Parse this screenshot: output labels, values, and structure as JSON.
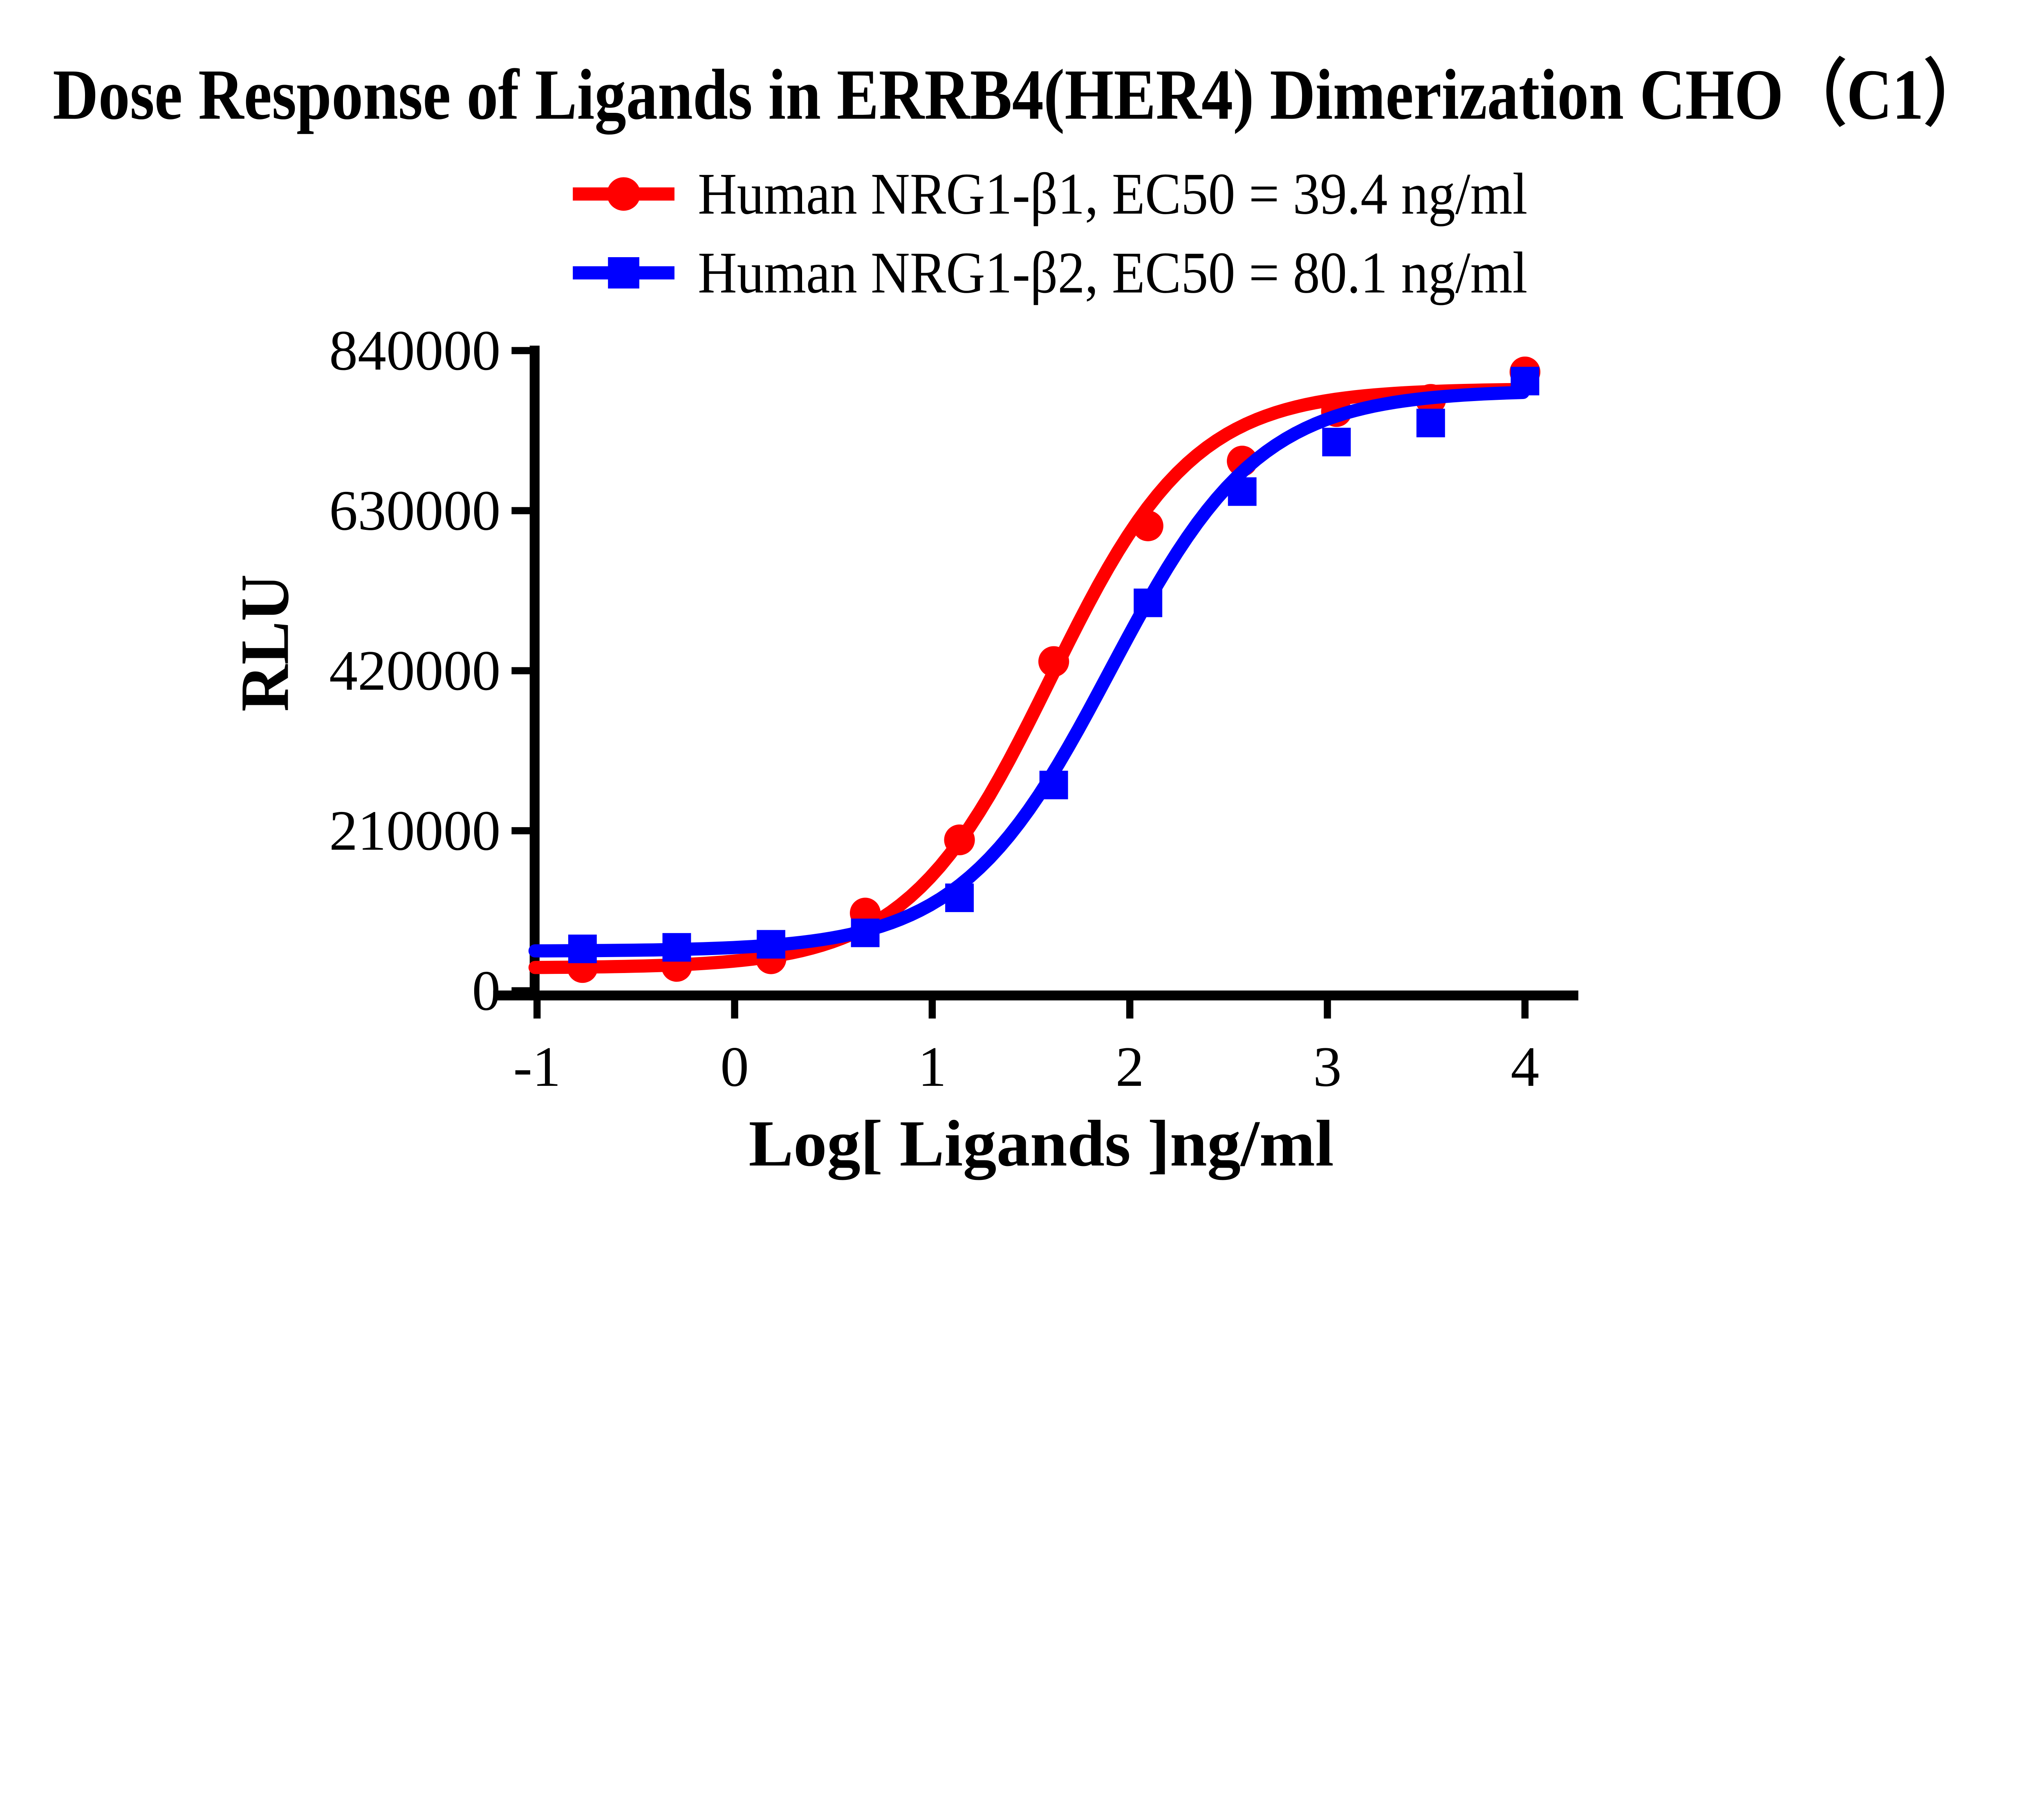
{
  "title": "Dose Response of Ligands in ERRB4(HER4) Dimerization CHO（C1）",
  "legend": [
    {
      "label": "Human NRG1-β1, EC50 = 39.4 ng/ml",
      "color": "#FF0000",
      "marker": "circle"
    },
    {
      "label": "Human NRG1-β2, EC50 = 80.1 ng/ml",
      "color": "#0000FF",
      "marker": "square"
    }
  ],
  "axes": {
    "x_title": "Log[ Ligands ]ng/ml",
    "y_title": "RLU",
    "x_tick_labels": [
      "-1",
      "0",
      "1",
      "2",
      "3",
      "4"
    ],
    "y_tick_labels": [
      "0",
      "210000",
      "420000",
      "630000",
      "840000"
    ]
  },
  "chart_data": {
    "type": "scatter",
    "title": "Dose Response of Ligands in ERRB4(HER4) Dimerization CHO（C1）",
    "xlabel": "Log[ Ligands ]ng/ml",
    "ylabel": "RLU",
    "xlim": [
      -1,
      4.25
    ],
    "ylim": [
      0,
      840000
    ],
    "x_tick_values": [
      -1,
      0,
      1,
      2,
      3,
      4
    ],
    "y_tick_values": [
      0,
      210000,
      420000,
      630000,
      840000
    ],
    "grid": false,
    "legend_position": "top",
    "x": [
      -0.77,
      -0.293,
      0.184,
      0.661,
      1.138,
      1.615,
      2.092,
      2.569,
      3.046,
      3.523,
      4.0
    ],
    "series": [
      {
        "name": "Human NRG1-β1, EC50 = 39.4 ng/ml",
        "color": "#FF0000",
        "marker": "circle",
        "ec50_ng_ml": 39.4,
        "values": [
          30500,
          32000,
          42000,
          102000,
          198000,
          432000,
          610000,
          695000,
          760000,
          776000,
          812000
        ],
        "fit": {
          "bottom": 30000,
          "top": 790000,
          "logEC50": 1.6,
          "hill": 1.2,
          "x_start": -1.01,
          "x_end": 4.0
        }
      },
      {
        "name": "Human NRG1-β2, EC50 = 80.1 ng/ml",
        "color": "#0000FF",
        "marker": "square",
        "ec50_ng_ml": 80.1,
        "values": [
          55000,
          57000,
          61000,
          76000,
          122000,
          270000,
          509000,
          655000,
          720000,
          745000,
          800000
        ],
        "fit": {
          "bottom": 52000,
          "top": 788000,
          "logEC50": 1.9,
          "hill": 1.15,
          "x_start": -1.01,
          "x_end": 4.0
        }
      }
    ]
  }
}
